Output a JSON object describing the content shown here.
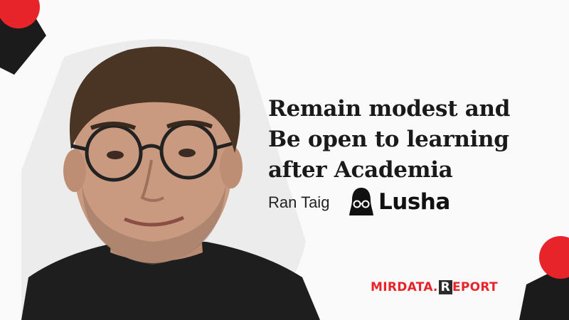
{
  "headline": {
    "line1": "Remain modest and",
    "line2": "Be open to learning",
    "line3": "after Academia"
  },
  "person": {
    "name": "Ran Taig"
  },
  "company": {
    "name": "Lusha",
    "icon": "lusha-logo-icon"
  },
  "brand": {
    "part1": "MIRDATA",
    "dot": ".",
    "part2": "R",
    "part3": "EPORT"
  },
  "colors": {
    "accent_red": "#e8242b",
    "dark": "#1a1a1a",
    "background": "#fafafa"
  }
}
